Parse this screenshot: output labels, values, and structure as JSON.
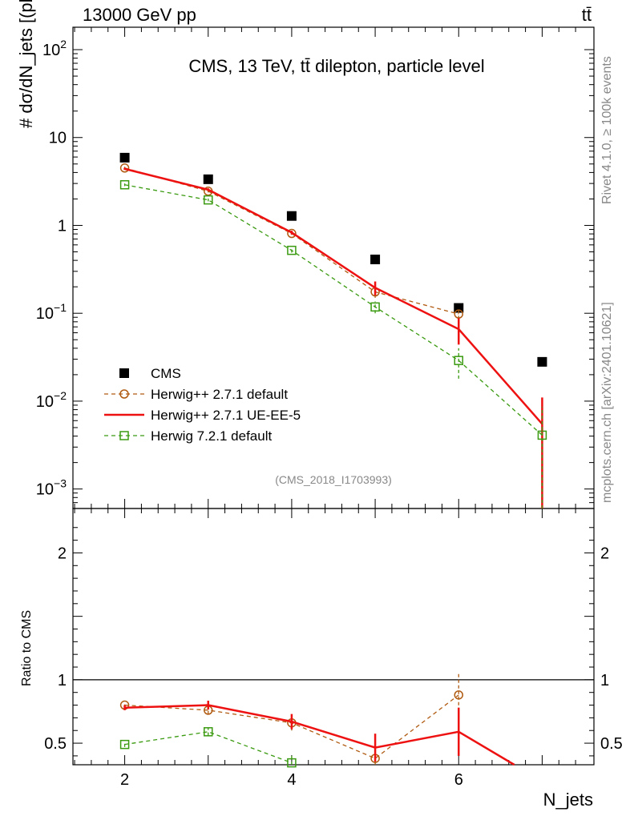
{
  "header": {
    "left": "13000 GeV pp",
    "right": "tt̄"
  },
  "side_text": {
    "rivet": "Rivet 4.1.0, ≥ 100k events",
    "mcplots": "mcplots.cern.ch [arXiv:2401.10621]"
  },
  "chart_data": [
    {
      "type": "scatter",
      "panel": "main",
      "title": "CMS, 13 TeV, tt̄ dilepton, particle level",
      "watermark": "(CMS_2018_I1703993)",
      "ylabel": "# dσ/dN_jets [(pb)]",
      "yscale": "log",
      "ylim": [
        0.0006,
        180
      ],
      "xlim": [
        1.38,
        7.62
      ],
      "y_tick_labels": [
        "10^-3",
        "10^-2",
        "10^-1",
        "1",
        "10",
        "10^2"
      ],
      "legend_position": "bottom-left",
      "x": [
        2,
        3,
        4,
        5,
        6,
        7
      ],
      "series": [
        {
          "name": "CMS",
          "style": "marker-square",
          "color": "#000000",
          "values": [
            5.9,
            3.35,
            1.28,
            0.41,
            0.115,
            0.028
          ]
        },
        {
          "name": "Herwig++ 2.7.1 default",
          "style": "dashed-circle",
          "color": "#b05a10",
          "values": [
            4.5,
            2.45,
            0.81,
            0.175,
            0.098,
            null
          ],
          "err": [
            0.15,
            0.08,
            0.03,
            0.025,
            0.012,
            null
          ]
        },
        {
          "name": "Herwig++ 2.7.1 UE-EE-5",
          "style": "solid",
          "color": "#ee1111",
          "values": [
            4.4,
            2.55,
            0.83,
            0.195,
            0.066,
            0.0055
          ],
          "err": [
            0.12,
            0.09,
            0.04,
            0.035,
            0.022,
            0.0055
          ]
        },
        {
          "name": "Herwig 7.2.1 default",
          "style": "dashed-square",
          "color": "#3a9a10",
          "values": [
            2.9,
            1.95,
            0.52,
            0.118,
            0.029,
            0.0041
          ],
          "err": [
            0.1,
            0.07,
            0.03,
            0.018,
            0.011,
            0.0045
          ]
        }
      ]
    },
    {
      "type": "line",
      "panel": "ratio",
      "ylabel": "Ratio to CMS",
      "xlabel": "N_jets",
      "ylim": [
        0.33,
        2.35
      ],
      "xlim": [
        1.38,
        7.62
      ],
      "y_tick_labels": [
        "0.5",
        "1",
        "2"
      ],
      "x_tick_labels": [
        "2",
        "4",
        "6"
      ],
      "x": [
        2,
        3,
        4,
        5,
        6,
        7
      ],
      "series": [
        {
          "name": "Herwig++ 2.7.1 default",
          "color": "#b05a10",
          "values": [
            0.8,
            0.76,
            0.66,
            0.38,
            0.88,
            null
          ],
          "err": [
            0.02,
            0.03,
            0.06,
            0.07,
            0.17,
            null
          ]
        },
        {
          "name": "Herwig++ 2.7.1 UE-EE-5",
          "color": "#ee1111",
          "values": [
            0.78,
            0.8,
            0.67,
            0.465,
            0.59,
            0.2
          ],
          "err": [
            0.02,
            0.035,
            0.06,
            0.11,
            0.19,
            null
          ]
        },
        {
          "name": "Herwig 7.2.1 default",
          "color": "#3a9a10",
          "values": [
            0.49,
            0.59,
            0.345,
            null,
            null,
            null
          ],
          "err": [
            0.02,
            0.03,
            0.06,
            null,
            null,
            null
          ]
        }
      ]
    }
  ]
}
